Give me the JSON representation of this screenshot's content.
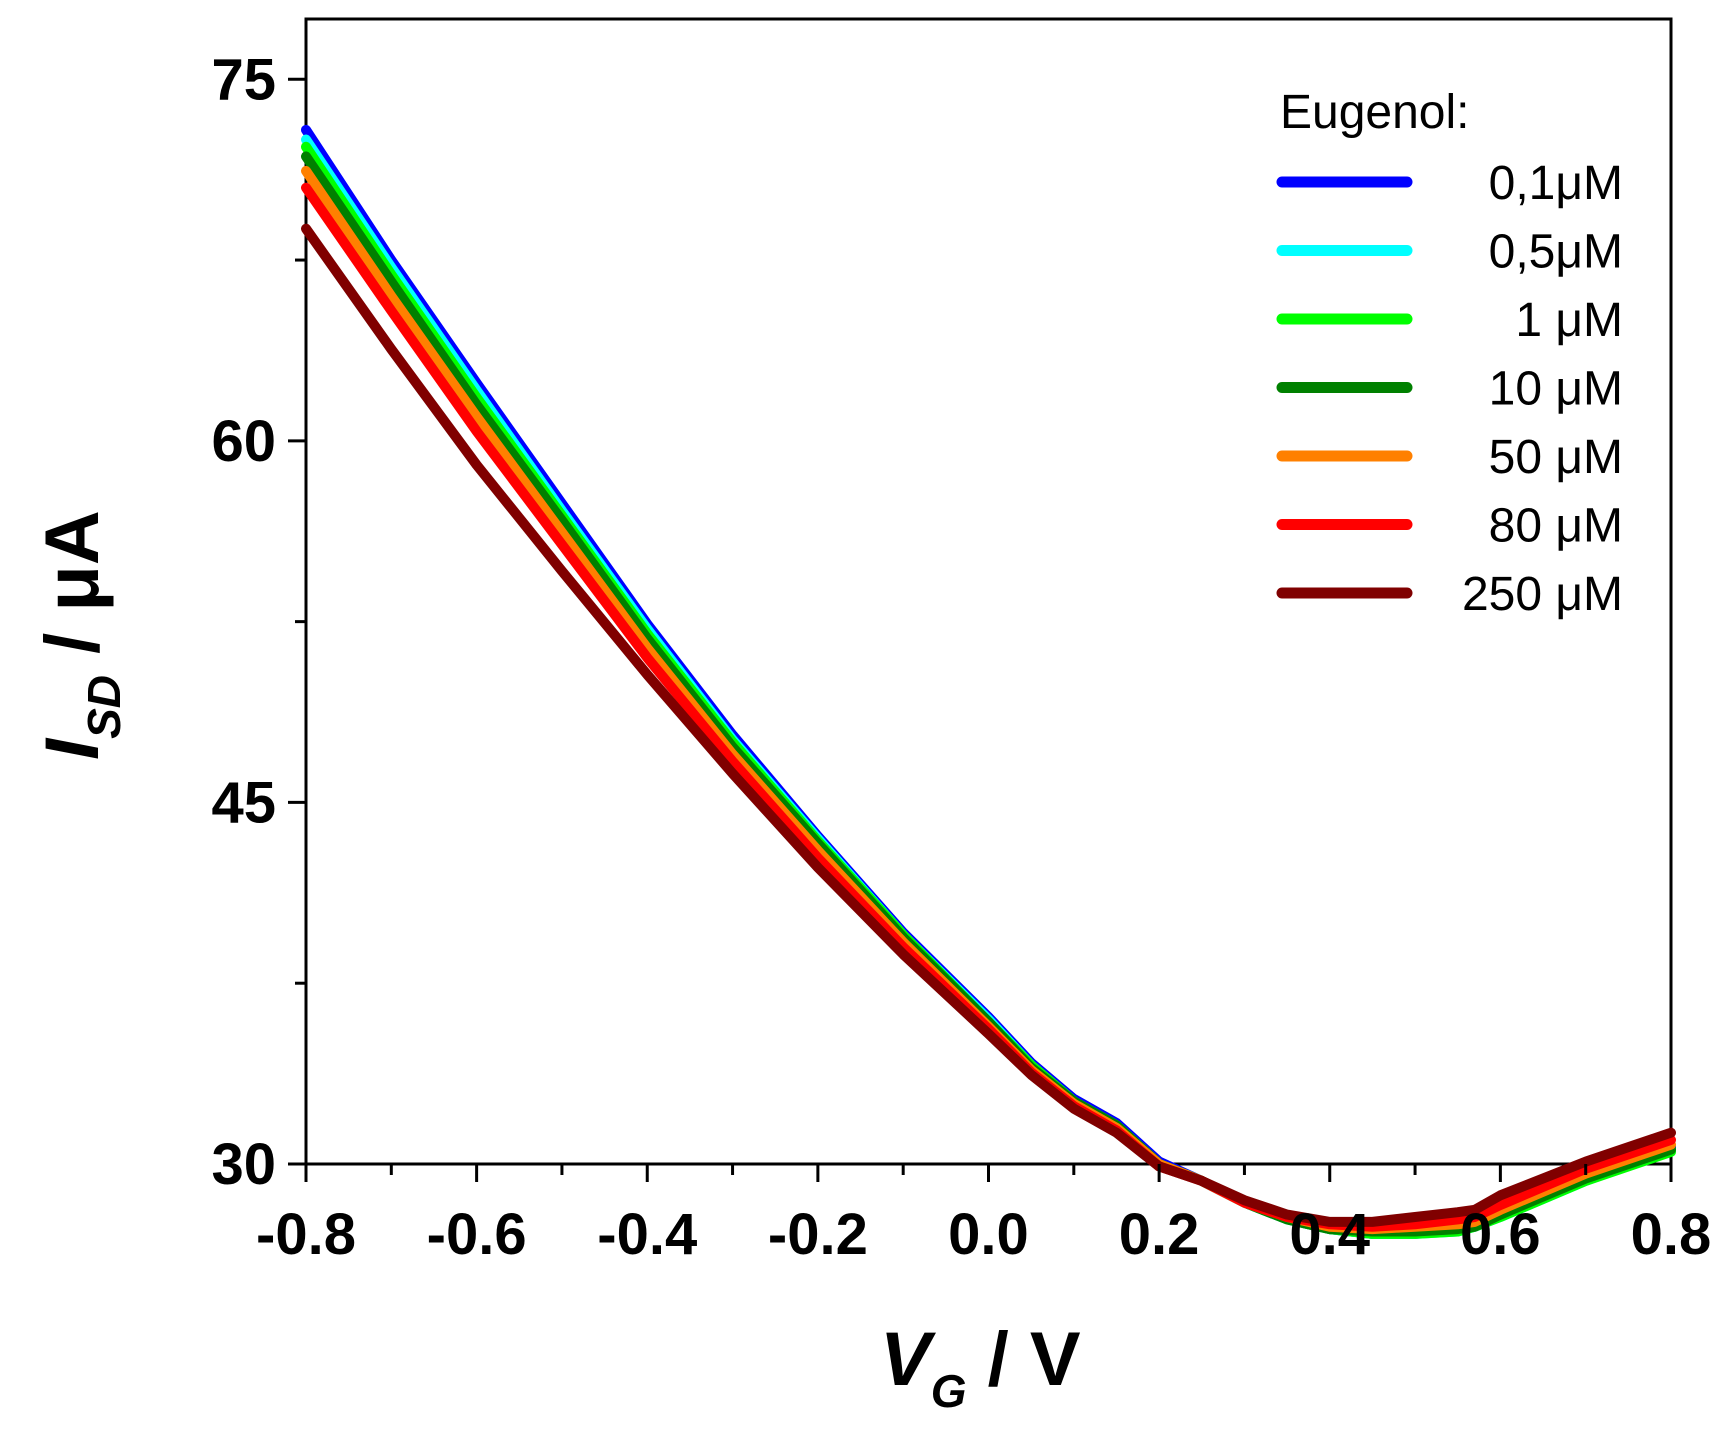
{
  "chart_data": {
    "type": "line",
    "title": "",
    "xlabel": {
      "main": "V",
      "sub": "G",
      "unit": " / V"
    },
    "ylabel": {
      "main": "I",
      "sub": "SD",
      "unit": " / μA"
    },
    "xlim": [
      -0.8,
      0.8
    ],
    "ylim": [
      30,
      77.5
    ],
    "x_ticks": [
      -0.8,
      -0.6,
      -0.4,
      -0.2,
      0.0,
      0.2,
      0.4,
      0.6,
      0.8
    ],
    "x_tick_labels": [
      "-0.8",
      "-0.6",
      "-0.4",
      "-0.2",
      "0.0",
      "0.2",
      "0.4",
      "0.6",
      "0.8"
    ],
    "y_ticks": [
      30,
      45,
      60,
      75
    ],
    "y_tick_labels": [
      "30",
      "45",
      "60",
      "75"
    ],
    "grid": false,
    "legend": {
      "title": "Eugenol:",
      "placement": "top-right"
    },
    "x": [
      -0.8,
      -0.7,
      -0.6,
      -0.5,
      -0.4,
      -0.3,
      -0.2,
      -0.1,
      0.0,
      0.05,
      0.1,
      0.15,
      0.2,
      0.25,
      0.3,
      0.35,
      0.4,
      0.45,
      0.5,
      0.55,
      0.57,
      0.6,
      0.7,
      0.8
    ],
    "series": [
      {
        "name": "0,1μM",
        "color": "#0000ff",
        "values": [
          72.9,
          67.5,
          62.4,
          57.4,
          52.4,
          47.8,
          43.6,
          39.6,
          36.1,
          34.2,
          32.7,
          31.7,
          30.1,
          29.3,
          28.4,
          27.7,
          27.3,
          27.1,
          27.1,
          27.3,
          27.4,
          27.9,
          29.4,
          30.7
        ]
      },
      {
        "name": "0,5μM",
        "color": "#00ffff",
        "values": [
          72.5,
          67.2,
          62.1,
          57.1,
          52.2,
          47.6,
          43.5,
          39.5,
          36.0,
          34.1,
          32.6,
          31.6,
          30.0,
          29.3,
          28.4,
          27.7,
          27.3,
          27.1,
          27.1,
          27.2,
          27.4,
          27.8,
          29.3,
          30.6
        ]
      },
      {
        "name": "1 μM",
        "color": "#00ff00",
        "values": [
          72.2,
          66.9,
          61.8,
          56.9,
          52.0,
          47.5,
          43.4,
          39.5,
          35.9,
          34.1,
          32.6,
          31.6,
          30.0,
          29.3,
          28.4,
          27.7,
          27.3,
          27.1,
          27.1,
          27.2,
          27.4,
          27.8,
          29.3,
          30.5
        ]
      },
      {
        "name": "10 μM",
        "color": "#008000",
        "values": [
          71.8,
          66.6,
          61.5,
          56.7,
          51.8,
          47.3,
          43.3,
          39.4,
          35.9,
          34.0,
          32.6,
          31.6,
          30.0,
          29.3,
          28.4,
          27.7,
          27.3,
          27.2,
          27.2,
          27.3,
          27.4,
          27.9,
          29.4,
          30.6
        ]
      },
      {
        "name": "50 μM",
        "color": "#ff8000",
        "values": [
          71.2,
          66.0,
          61.0,
          56.2,
          51.4,
          47.0,
          43.0,
          39.2,
          35.7,
          33.9,
          32.5,
          31.5,
          30.0,
          29.3,
          28.4,
          27.8,
          27.4,
          27.3,
          27.4,
          27.5,
          27.6,
          28.1,
          29.6,
          30.8
        ]
      },
      {
        "name": "80 μM",
        "color": "#ff0000",
        "values": [
          70.5,
          65.4,
          60.4,
          55.7,
          51.0,
          46.7,
          42.7,
          39.0,
          35.6,
          33.8,
          32.4,
          31.4,
          29.9,
          29.3,
          28.4,
          27.8,
          27.5,
          27.4,
          27.5,
          27.7,
          27.8,
          28.3,
          29.8,
          31.0
        ]
      },
      {
        "name": "250 μM",
        "color": "#800000",
        "values": [
          68.8,
          63.8,
          59.0,
          54.6,
          50.3,
          46.2,
          42.3,
          38.7,
          35.4,
          33.7,
          32.3,
          31.3,
          29.9,
          29.3,
          28.5,
          27.9,
          27.6,
          27.6,
          27.8,
          28.0,
          28.1,
          28.7,
          30.1,
          31.3
        ]
      }
    ]
  }
}
